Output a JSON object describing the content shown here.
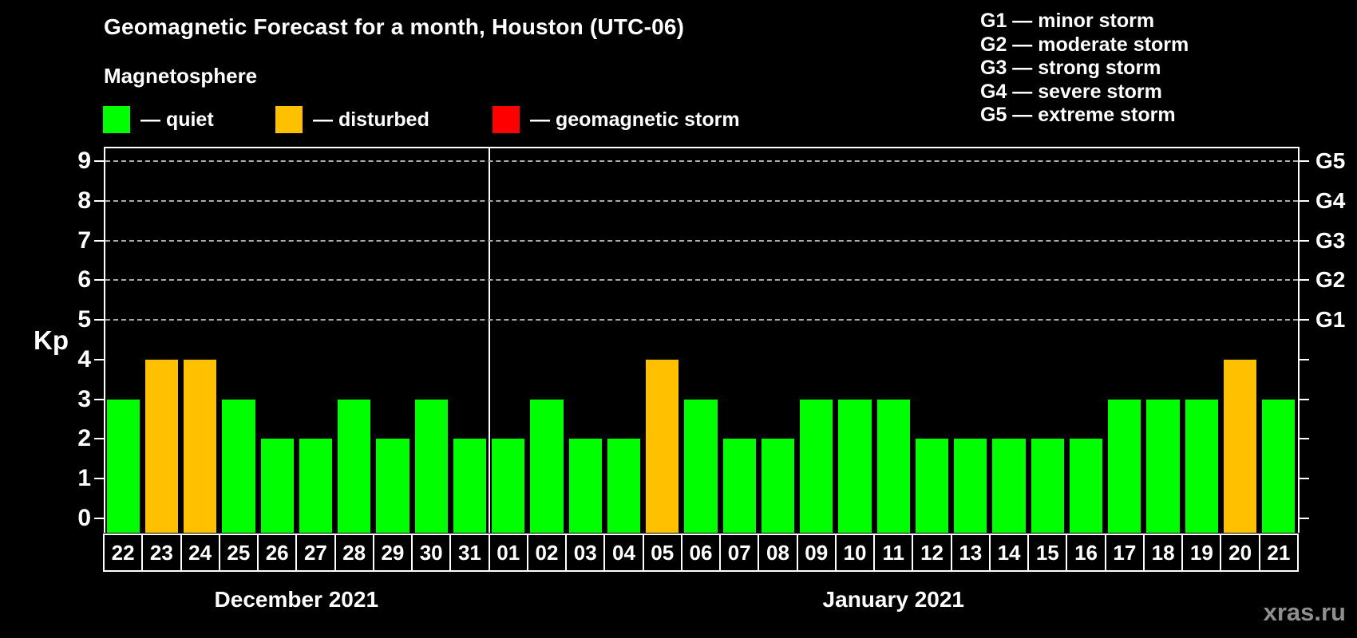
{
  "title": "Geomagnetic Forecast for a month, Houston (UTC-06)",
  "subtitle": "Magnetosphere",
  "watermark": "xras.ru",
  "legend": {
    "items": [
      {
        "name": "quiet",
        "label": "— quiet",
        "color": "#00ff00"
      },
      {
        "name": "disturbed",
        "label": "— disturbed",
        "color": "#ffc000"
      },
      {
        "name": "storm",
        "label": "— geomagnetic storm",
        "color": "#ff0000"
      }
    ]
  },
  "g_scale_legend": [
    "G1 — minor storm",
    "G2 — moderate storm",
    "G3 — strong storm",
    "G4 — severe storm",
    "G5 — extreme storm"
  ],
  "colors": {
    "quiet": "#00ff00",
    "disturbed": "#ffc000",
    "storm": "#ff0000",
    "grid": "#aaaaaa",
    "axis": "#ffffff",
    "watermark": "#8f8f8f"
  },
  "chart_data": {
    "type": "bar",
    "title": "Geomagnetic Forecast for a month, Houston (UTC-06)",
    "xlabel": "",
    "ylabel": "Kp",
    "ylim": [
      0,
      9
    ],
    "yticks": [
      0,
      1,
      2,
      3,
      4,
      5,
      6,
      7,
      8,
      9
    ],
    "gridlines_at": [
      5,
      6,
      7,
      8,
      9
    ],
    "grid": true,
    "right_axis_labels": [
      {
        "kp": 5,
        "label": "G1"
      },
      {
        "kp": 6,
        "label": "G2"
      },
      {
        "kp": 7,
        "label": "G3"
      },
      {
        "kp": 8,
        "label": "G4"
      },
      {
        "kp": 9,
        "label": "G5"
      }
    ],
    "legend_position": "top-left",
    "months": [
      {
        "label": "December 2021",
        "days": [
          {
            "day": "22",
            "kp": 3,
            "status": "quiet"
          },
          {
            "day": "23",
            "kp": 4,
            "status": "disturbed"
          },
          {
            "day": "24",
            "kp": 4,
            "status": "disturbed"
          },
          {
            "day": "25",
            "kp": 3,
            "status": "quiet"
          },
          {
            "day": "26",
            "kp": 2,
            "status": "quiet"
          },
          {
            "day": "27",
            "kp": 2,
            "status": "quiet"
          },
          {
            "day": "28",
            "kp": 3,
            "status": "quiet"
          },
          {
            "day": "29",
            "kp": 2,
            "status": "quiet"
          },
          {
            "day": "30",
            "kp": 3,
            "status": "quiet"
          },
          {
            "day": "31",
            "kp": 2,
            "status": "quiet"
          }
        ]
      },
      {
        "label": "January 2021",
        "days": [
          {
            "day": "01",
            "kp": 2,
            "status": "quiet"
          },
          {
            "day": "02",
            "kp": 3,
            "status": "quiet"
          },
          {
            "day": "03",
            "kp": 2,
            "status": "quiet"
          },
          {
            "day": "04",
            "kp": 2,
            "status": "quiet"
          },
          {
            "day": "05",
            "kp": 4,
            "status": "disturbed"
          },
          {
            "day": "06",
            "kp": 3,
            "status": "quiet"
          },
          {
            "day": "07",
            "kp": 2,
            "status": "quiet"
          },
          {
            "day": "08",
            "kp": 2,
            "status": "quiet"
          },
          {
            "day": "09",
            "kp": 3,
            "status": "quiet"
          },
          {
            "day": "10",
            "kp": 3,
            "status": "quiet"
          },
          {
            "day": "11",
            "kp": 3,
            "status": "quiet"
          },
          {
            "day": "12",
            "kp": 2,
            "status": "quiet"
          },
          {
            "day": "13",
            "kp": 2,
            "status": "quiet"
          },
          {
            "day": "14",
            "kp": 2,
            "status": "quiet"
          },
          {
            "day": "15",
            "kp": 2,
            "status": "quiet"
          },
          {
            "day": "16",
            "kp": 2,
            "status": "quiet"
          },
          {
            "day": "17",
            "kp": 3,
            "status": "quiet"
          },
          {
            "day": "18",
            "kp": 3,
            "status": "quiet"
          },
          {
            "day": "19",
            "kp": 3,
            "status": "quiet"
          },
          {
            "day": "20",
            "kp": 4,
            "status": "disturbed"
          },
          {
            "day": "21",
            "kp": 3,
            "status": "quiet"
          }
        ]
      }
    ]
  }
}
